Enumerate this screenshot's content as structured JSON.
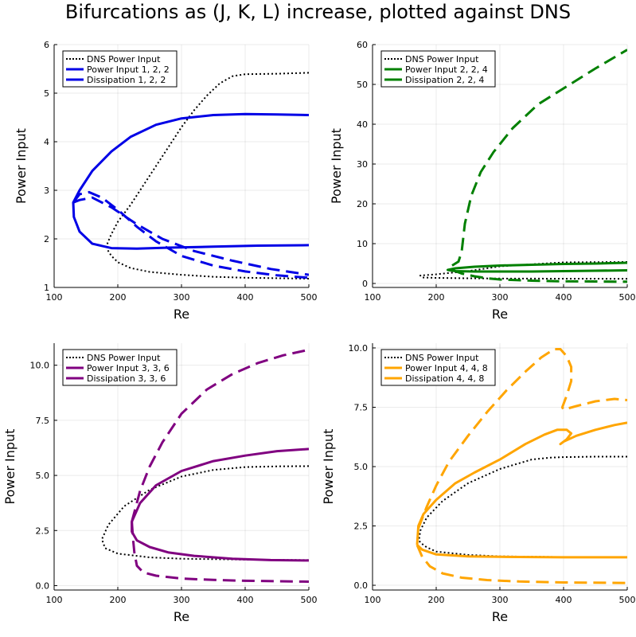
{
  "title": "Bifurcations as (J, K, L) increase, plotted against DNS",
  "chart_data": [
    {
      "type": "line",
      "xlabel": "Re",
      "ylabel": "Power Input",
      "xlim": [
        100,
        500
      ],
      "ylim": [
        1,
        6
      ],
      "xticks": [
        100,
        200,
        300,
        400,
        500
      ],
      "xtick_labels": [
        "100",
        "200",
        "300",
        "400",
        "500"
      ],
      "yticks": [
        1,
        2,
        3,
        4,
        5,
        6
      ],
      "ytick_labels": [
        "1",
        "2",
        "3",
        "4",
        "5",
        "6"
      ],
      "grid": true,
      "legend_position": "top-left",
      "series": [
        {
          "name": "DNS Power Input",
          "color": "#000000",
          "style": "dotted",
          "x": [
            500,
            450,
            400,
            380,
            360,
            340,
            320,
            300,
            280,
            260,
            240,
            220,
            200,
            190,
            185,
            183,
            185,
            190,
            200,
            220,
            250,
            300,
            350,
            400,
            450,
            500
          ],
          "y": [
            5.42,
            5.4,
            5.39,
            5.35,
            5.2,
            4.95,
            4.65,
            4.3,
            3.9,
            3.5,
            3.1,
            2.7,
            2.35,
            2.1,
            1.95,
            1.88,
            1.75,
            1.65,
            1.52,
            1.4,
            1.32,
            1.26,
            1.22,
            1.2,
            1.19,
            1.18
          ]
        },
        {
          "name": "Power Input 1, 2, 2",
          "color": "#0000e6",
          "style": "solid",
          "x": [
            500,
            450,
            400,
            350,
            300,
            260,
            220,
            190,
            160,
            140,
            130,
            131,
            140,
            160,
            190,
            230,
            280,
            350,
            420,
            500
          ],
          "y": [
            4.55,
            4.56,
            4.57,
            4.55,
            4.48,
            4.35,
            4.1,
            3.8,
            3.4,
            3.0,
            2.75,
            2.45,
            2.15,
            1.9,
            1.81,
            1.8,
            1.82,
            1.84,
            1.86,
            1.87
          ]
        },
        {
          "name": "Dissipation 1, 2, 2",
          "color": "#0000e6",
          "style": "dashed",
          "x": [
            130,
            140,
            155,
            175,
            200,
            230,
            260,
            300,
            350,
            400,
            450,
            500
          ],
          "y": [
            2.75,
            2.92,
            2.96,
            2.85,
            2.6,
            2.25,
            1.95,
            1.65,
            1.45,
            1.33,
            1.25,
            1.2
          ]
        },
        {
          "name": "",
          "color": "#0000e6",
          "style": "dashed",
          "x": [
            130,
            140,
            160,
            190,
            230,
            270,
            320,
            380,
            440,
            500
          ],
          "y": [
            2.75,
            2.8,
            2.85,
            2.65,
            2.3,
            2.0,
            1.75,
            1.55,
            1.38,
            1.26
          ]
        }
      ]
    },
    {
      "type": "line",
      "xlabel": "Re",
      "ylabel": "Power Input",
      "xlim": [
        100,
        500
      ],
      "ylim": [
        -1,
        60
      ],
      "xticks": [
        100,
        200,
        300,
        400,
        500
      ],
      "xtick_labels": [
        "100",
        "200",
        "300",
        "400",
        "500"
      ],
      "yticks": [
        0,
        10,
        20,
        30,
        40,
        50,
        60
      ],
      "ytick_labels": [
        "0",
        "10",
        "20",
        "30",
        "40",
        "50",
        "60"
      ],
      "grid": true,
      "legend_position": "top-left",
      "series": [
        {
          "name": "DNS Power Input",
          "color": "#000000",
          "style": "dotted",
          "x": [
            500,
            400,
            300,
            250,
            200,
            175,
            178,
            200,
            250,
            300,
            400,
            500
          ],
          "y": [
            5.4,
            5.3,
            4.3,
            3.1,
            2.3,
            2.0,
            1.5,
            1.4,
            1.3,
            1.25,
            1.2,
            1.18
          ]
        },
        {
          "name": "Power Input 2, 2, 4",
          "color": "#008000",
          "style": "solid",
          "x": [
            500,
            450,
            400,
            350,
            300,
            260,
            230,
            218,
            230,
            260,
            300,
            350,
            400,
            450,
            500
          ],
          "y": [
            5.2,
            5.0,
            4.9,
            4.7,
            4.5,
            4.2,
            3.8,
            3.4,
            3.1,
            3.0,
            3.0,
            3.0,
            3.1,
            3.2,
            3.3
          ]
        },
        {
          "name": "Dissipation 2, 2, 4",
          "color": "#008000",
          "style": "dashed",
          "x": [
            225,
            235,
            240,
            245,
            255,
            270,
            290,
            320,
            360,
            400,
            450,
            500
          ],
          "y": [
            4.5,
            5.5,
            8,
            15,
            22,
            28,
            33,
            39,
            45,
            49,
            54,
            58.7
          ]
        },
        {
          "name": "",
          "color": "#008000",
          "style": "dashed",
          "x": [
            225,
            240,
            260,
            280,
            300,
            350,
            400,
            450,
            500
          ],
          "y": [
            3.4,
            2.5,
            1.8,
            1.3,
            1.0,
            0.7,
            0.55,
            0.5,
            0.45
          ]
        }
      ]
    },
    {
      "type": "line",
      "xlabel": "Re",
      "ylabel": "Power Input",
      "xlim": [
        100,
        500
      ],
      "ylim": [
        -0.2,
        11
      ],
      "xticks": [
        100,
        200,
        300,
        400,
        500
      ],
      "xtick_labels": [
        "100",
        "200",
        "300",
        "400",
        "500"
      ],
      "yticks": [
        0,
        2.5,
        5,
        7.5,
        10
      ],
      "ytick_labels": [
        "0.0",
        "2.5",
        "5.0",
        "7.5",
        "10.0"
      ],
      "grid": true,
      "legend_position": "top-left",
      "series": [
        {
          "name": "DNS Power Input",
          "color": "#000000",
          "style": "dotted",
          "x": [
            500,
            450,
            400,
            350,
            300,
            250,
            210,
            185,
            175,
            180,
            200,
            250,
            300,
            400,
            500
          ],
          "y": [
            5.42,
            5.41,
            5.38,
            5.25,
            4.95,
            4.35,
            3.6,
            2.75,
            2.1,
            1.7,
            1.45,
            1.28,
            1.22,
            1.18,
            1.16
          ]
        },
        {
          "name": "Power Input 3, 3, 6",
          "color": "#800080",
          "style": "solid",
          "x": [
            500,
            450,
            400,
            350,
            300,
            260,
            235,
            222,
            222,
            230,
            250,
            280,
            320,
            380,
            440,
            500
          ],
          "y": [
            6.2,
            6.1,
            5.9,
            5.65,
            5.2,
            4.55,
            3.75,
            2.9,
            2.45,
            2.05,
            1.75,
            1.5,
            1.35,
            1.22,
            1.16,
            1.14
          ]
        },
        {
          "name": "Dissipation 3, 3, 6",
          "color": "#800080",
          "style": "dashed",
          "x": [
            222,
            235,
            250,
            270,
            300,
            340,
            380,
            420,
            460,
            500
          ],
          "y": [
            2.9,
            4.3,
            5.4,
            6.5,
            7.8,
            8.9,
            9.6,
            10.1,
            10.45,
            10.7
          ]
        },
        {
          "name": "",
          "color": "#800080",
          "style": "dashed",
          "x": [
            222,
            224,
            226,
            230,
            240,
            260,
            300,
            350,
            400,
            450,
            500
          ],
          "y": [
            2.9,
            2.1,
            1.5,
            0.9,
            0.6,
            0.45,
            0.32,
            0.26,
            0.22,
            0.2,
            0.18
          ]
        }
      ]
    },
    {
      "type": "line",
      "xlabel": "Re",
      "ylabel": "Power Input",
      "xlim": [
        100,
        500
      ],
      "ylim": [
        -0.2,
        10.2
      ],
      "xticks": [
        100,
        200,
        300,
        400,
        500
      ],
      "xtick_labels": [
        "100",
        "200",
        "300",
        "400",
        "500"
      ],
      "yticks": [
        0,
        2.5,
        5,
        7.5,
        10
      ],
      "ytick_labels": [
        "0.0",
        "2.5",
        "5.0",
        "7.5",
        "10.0"
      ],
      "grid": true,
      "legend_position": "top-left",
      "series": [
        {
          "name": "DNS Power Input",
          "color": "#000000",
          "style": "dotted",
          "x": [
            500,
            450,
            400,
            380,
            350,
            300,
            250,
            210,
            185,
            175,
            173,
            175,
            185,
            200,
            250,
            300,
            400,
            500
          ],
          "y": [
            5.42,
            5.42,
            5.4,
            5.38,
            5.3,
            4.9,
            4.3,
            3.55,
            2.85,
            2.3,
            1.9,
            1.8,
            1.6,
            1.42,
            1.28,
            1.22,
            1.19,
            1.18
          ]
        },
        {
          "name": "Power Input 4, 4, 8",
          "color": "#ffa500",
          "style": "solid",
          "x": [
            170,
            172,
            180,
            200,
            230,
            260,
            300,
            340,
            370,
            390,
            405,
            412,
            405,
            395,
            400,
            420,
            450,
            480,
            500
          ],
          "y": [
            1.7,
            2.5,
            3.0,
            3.6,
            4.3,
            4.75,
            5.3,
            5.95,
            6.35,
            6.55,
            6.55,
            6.4,
            6.15,
            5.95,
            6.05,
            6.3,
            6.55,
            6.75,
            6.85
          ]
        },
        {
          "name": "Dissipation 4, 4, 8",
          "color": "#ffa500",
          "style": "dashed",
          "x": [
            172,
            185,
            200,
            220,
            250,
            280,
            310,
            340,
            365,
            385,
            395,
            405,
            412,
            412,
            405,
            398,
            400,
            420,
            450,
            480,
            500
          ],
          "y": [
            2.4,
            3.3,
            4.2,
            5.2,
            6.3,
            7.3,
            8.2,
            9.0,
            9.6,
            9.95,
            9.95,
            9.65,
            9.2,
            8.6,
            8.0,
            7.5,
            7.4,
            7.55,
            7.75,
            7.85,
            7.8
          ]
        },
        {
          "name": "",
          "color": "#ffa500",
          "style": "dashed",
          "x": [
            170,
            178,
            190,
            210,
            240,
            280,
            330,
            400,
            500
          ],
          "y": [
            1.7,
            1.2,
            0.8,
            0.5,
            0.32,
            0.22,
            0.16,
            0.12,
            0.1
          ]
        },
        {
          "name": "",
          "color": "#ffa500",
          "style": "solid",
          "x": [
            170,
            178,
            200,
            250,
            300,
            400,
            500
          ],
          "y": [
            1.7,
            1.5,
            1.3,
            1.22,
            1.2,
            1.18,
            1.18
          ]
        }
      ]
    }
  ]
}
